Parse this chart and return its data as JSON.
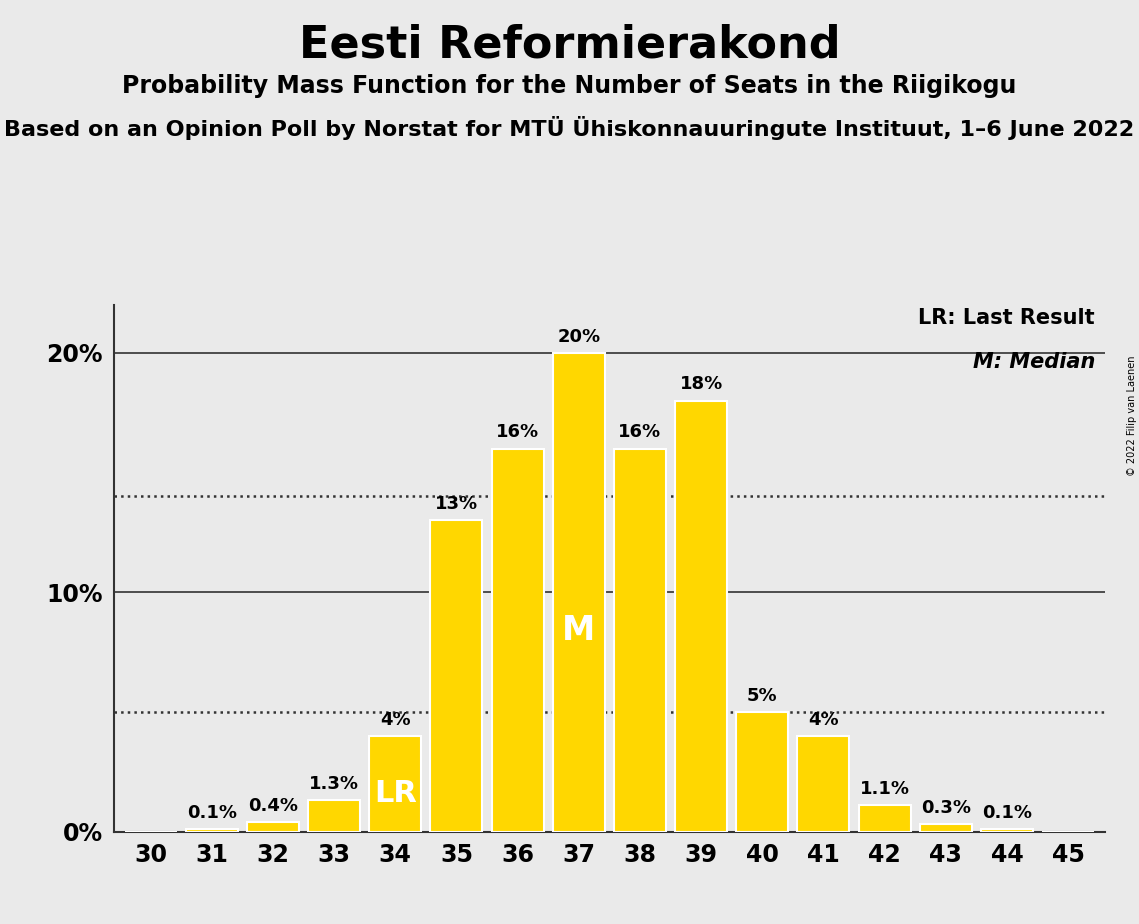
{
  "title": "Eesti Reformierakond",
  "subtitle": "Probability Mass Function for the Number of Seats in the Riigikogu",
  "subtitle2": "Based on an Opinion Poll by Norstat for MTÜ Ühiskonnauuringute Instituut, 1–6 June 2022",
  "copyright": "© 2022 Filip van Laenen",
  "seats": [
    30,
    31,
    32,
    33,
    34,
    35,
    36,
    37,
    38,
    39,
    40,
    41,
    42,
    43,
    44,
    45
  ],
  "probabilities": [
    0.0,
    0.1,
    0.4,
    1.3,
    4.0,
    13.0,
    16.0,
    20.0,
    16.0,
    18.0,
    5.0,
    4.0,
    1.1,
    0.3,
    0.1,
    0.0
  ],
  "bar_color": "#FFD700",
  "bar_edge_color": "#FFFFFF",
  "background_color": "#EAEAEA",
  "median_seat": 37,
  "last_result_seat": 34,
  "legend_lr": "LR: Last Result",
  "legend_m": "M: Median",
  "ytick_labels": [
    "0%",
    "10%",
    "20%"
  ],
  "ytick_values": [
    0,
    10,
    20
  ],
  "dotted_lines": [
    14.0,
    5.0
  ],
  "solid_lines": [
    0,
    10,
    20
  ],
  "ylim": [
    0,
    22
  ],
  "bar_label_fontsize": 13,
  "axis_label_fontsize": 17,
  "title_fontsize": 32,
  "subtitle_fontsize": 17,
  "subtitle2_fontsize": 16
}
